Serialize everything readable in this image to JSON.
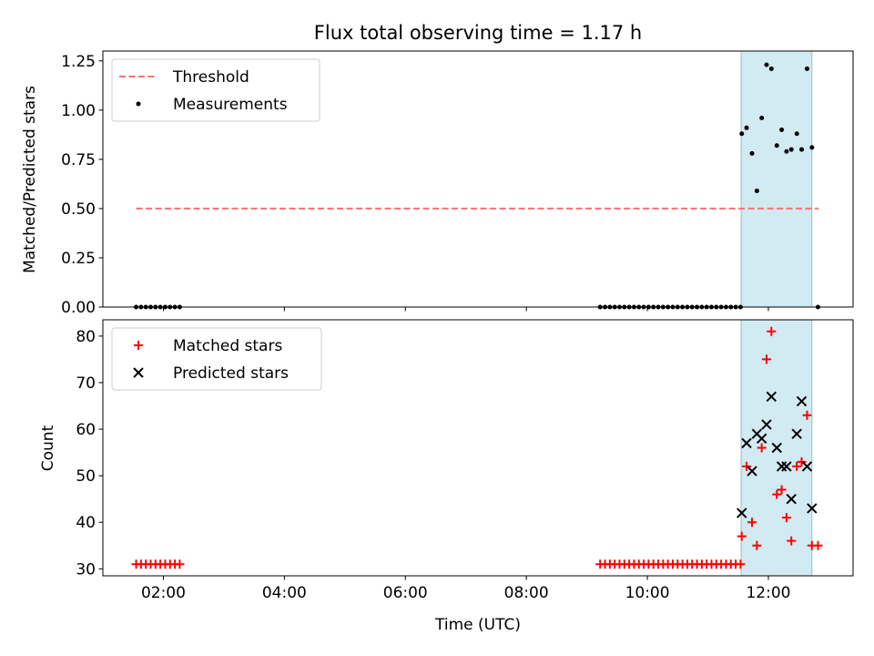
{
  "title": "Flux total observing time = 1.17 h",
  "colors": {
    "threshold": "#ff7070",
    "measurement": "#000000",
    "matched": "#ff0000",
    "predicted": "#000000",
    "highlight": "#add8e6"
  },
  "chart_data": [
    {
      "type": "scatter",
      "ylabel": "Matched/Predicted stars",
      "xlim": [
        1.0,
        13.4
      ],
      "ylim": [
        0.0,
        1.3
      ],
      "yticks": [
        0.0,
        0.25,
        0.5,
        0.75,
        1.0,
        1.25
      ],
      "ytick_labels": [
        "0.00",
        "0.25",
        "0.50",
        "0.75",
        "1.00",
        "1.25"
      ],
      "xticks": [
        2,
        4,
        6,
        8,
        10,
        12
      ],
      "highlight_span": [
        11.55,
        12.72
      ],
      "legend": {
        "placement": "upper-left",
        "entries": [
          "Threshold",
          "Measurements"
        ]
      },
      "threshold": {
        "name": "Threshold",
        "y": 0.5,
        "x_range": [
          1.55,
          12.83
        ]
      },
      "series": [
        {
          "name": "Measurements",
          "points": [
            [
              1.55,
              0.0
            ],
            [
              1.63,
              0.0
            ],
            [
              1.71,
              0.0
            ],
            [
              1.79,
              0.0
            ],
            [
              1.87,
              0.0
            ],
            [
              1.95,
              0.0
            ],
            [
              2.03,
              0.0
            ],
            [
              2.11,
              0.0
            ],
            [
              2.19,
              0.0
            ],
            [
              2.27,
              0.0
            ],
            [
              9.22,
              0.0
            ],
            [
              9.3,
              0.0
            ],
            [
              9.38,
              0.0
            ],
            [
              9.46,
              0.0
            ],
            [
              9.54,
              0.0
            ],
            [
              9.62,
              0.0
            ],
            [
              9.7,
              0.0
            ],
            [
              9.78,
              0.0
            ],
            [
              9.86,
              0.0
            ],
            [
              9.94,
              0.0
            ],
            [
              10.02,
              0.0
            ],
            [
              10.1,
              0.0
            ],
            [
              10.18,
              0.0
            ],
            [
              10.26,
              0.0
            ],
            [
              10.34,
              0.0
            ],
            [
              10.42,
              0.0
            ],
            [
              10.5,
              0.0
            ],
            [
              10.58,
              0.0
            ],
            [
              10.66,
              0.0
            ],
            [
              10.74,
              0.0
            ],
            [
              10.82,
              0.0
            ],
            [
              10.9,
              0.0
            ],
            [
              10.98,
              0.0
            ],
            [
              11.06,
              0.0
            ],
            [
              11.14,
              0.0
            ],
            [
              11.22,
              0.0
            ],
            [
              11.3,
              0.0
            ],
            [
              11.38,
              0.0
            ],
            [
              11.46,
              0.0
            ],
            [
              11.54,
              0.0
            ],
            [
              11.56,
              0.88
            ],
            [
              11.64,
              0.91
            ],
            [
              11.73,
              0.78
            ],
            [
              11.81,
              0.59
            ],
            [
              11.89,
              0.96
            ],
            [
              11.97,
              1.23
            ],
            [
              12.05,
              1.21
            ],
            [
              12.14,
              0.82
            ],
            [
              12.22,
              0.9
            ],
            [
              12.3,
              0.79
            ],
            [
              12.38,
              0.8
            ],
            [
              12.47,
              0.88
            ],
            [
              12.55,
              0.8
            ],
            [
              12.64,
              1.21
            ],
            [
              12.72,
              0.81
            ],
            [
              12.82,
              0.0
            ]
          ]
        }
      ]
    },
    {
      "type": "scatter",
      "xlabel": "Time (UTC)",
      "ylabel": "Count",
      "xlim": [
        1.0,
        13.4
      ],
      "ylim": [
        28.5,
        83.5
      ],
      "yticks": [
        30,
        40,
        50,
        60,
        70,
        80
      ],
      "ytick_labels": [
        "30",
        "40",
        "50",
        "60",
        "70",
        "80"
      ],
      "xticks": [
        2,
        4,
        6,
        8,
        10,
        12
      ],
      "xtick_labels": [
        "02:00",
        "04:00",
        "06:00",
        "08:00",
        "10:00",
        "12:00"
      ],
      "highlight_span": [
        11.55,
        12.72
      ],
      "legend": {
        "placement": "upper-left",
        "entries": [
          "Matched stars",
          "Predicted stars"
        ]
      },
      "series": [
        {
          "name": "Matched stars",
          "marker": "+",
          "points": [
            [
              1.55,
              31
            ],
            [
              1.63,
              31
            ],
            [
              1.71,
              31
            ],
            [
              1.79,
              31
            ],
            [
              1.87,
              31
            ],
            [
              1.95,
              31
            ],
            [
              2.03,
              31
            ],
            [
              2.11,
              31
            ],
            [
              2.19,
              31
            ],
            [
              2.27,
              31
            ],
            [
              9.22,
              31
            ],
            [
              9.3,
              31
            ],
            [
              9.38,
              31
            ],
            [
              9.46,
              31
            ],
            [
              9.54,
              31
            ],
            [
              9.62,
              31
            ],
            [
              9.7,
              31
            ],
            [
              9.78,
              31
            ],
            [
              9.86,
              31
            ],
            [
              9.94,
              31
            ],
            [
              10.02,
              31
            ],
            [
              10.1,
              31
            ],
            [
              10.18,
              31
            ],
            [
              10.26,
              31
            ],
            [
              10.34,
              31
            ],
            [
              10.42,
              31
            ],
            [
              10.5,
              31
            ],
            [
              10.58,
              31
            ],
            [
              10.66,
              31
            ],
            [
              10.74,
              31
            ],
            [
              10.82,
              31
            ],
            [
              10.9,
              31
            ],
            [
              10.98,
              31
            ],
            [
              11.06,
              31
            ],
            [
              11.14,
              31
            ],
            [
              11.22,
              31
            ],
            [
              11.3,
              31
            ],
            [
              11.38,
              31
            ],
            [
              11.46,
              31
            ],
            [
              11.54,
              31
            ],
            [
              11.56,
              37
            ],
            [
              11.64,
              52
            ],
            [
              11.73,
              40
            ],
            [
              11.81,
              35
            ],
            [
              11.89,
              56
            ],
            [
              11.97,
              75
            ],
            [
              12.05,
              81
            ],
            [
              12.14,
              46
            ],
            [
              12.22,
              47
            ],
            [
              12.3,
              41
            ],
            [
              12.38,
              36
            ],
            [
              12.47,
              52
            ],
            [
              12.55,
              53
            ],
            [
              12.64,
              63
            ],
            [
              12.72,
              35
            ],
            [
              12.82,
              35
            ]
          ]
        },
        {
          "name": "Predicted stars",
          "marker": "x",
          "points": [
            [
              11.56,
              42
            ],
            [
              11.64,
              57
            ],
            [
              11.73,
              51
            ],
            [
              11.81,
              59
            ],
            [
              11.89,
              58
            ],
            [
              11.97,
              61
            ],
            [
              12.05,
              67
            ],
            [
              12.14,
              56
            ],
            [
              12.22,
              52
            ],
            [
              12.3,
              52
            ],
            [
              12.38,
              45
            ],
            [
              12.47,
              59
            ],
            [
              12.55,
              66
            ],
            [
              12.64,
              52
            ],
            [
              12.72,
              43
            ]
          ]
        }
      ]
    }
  ]
}
